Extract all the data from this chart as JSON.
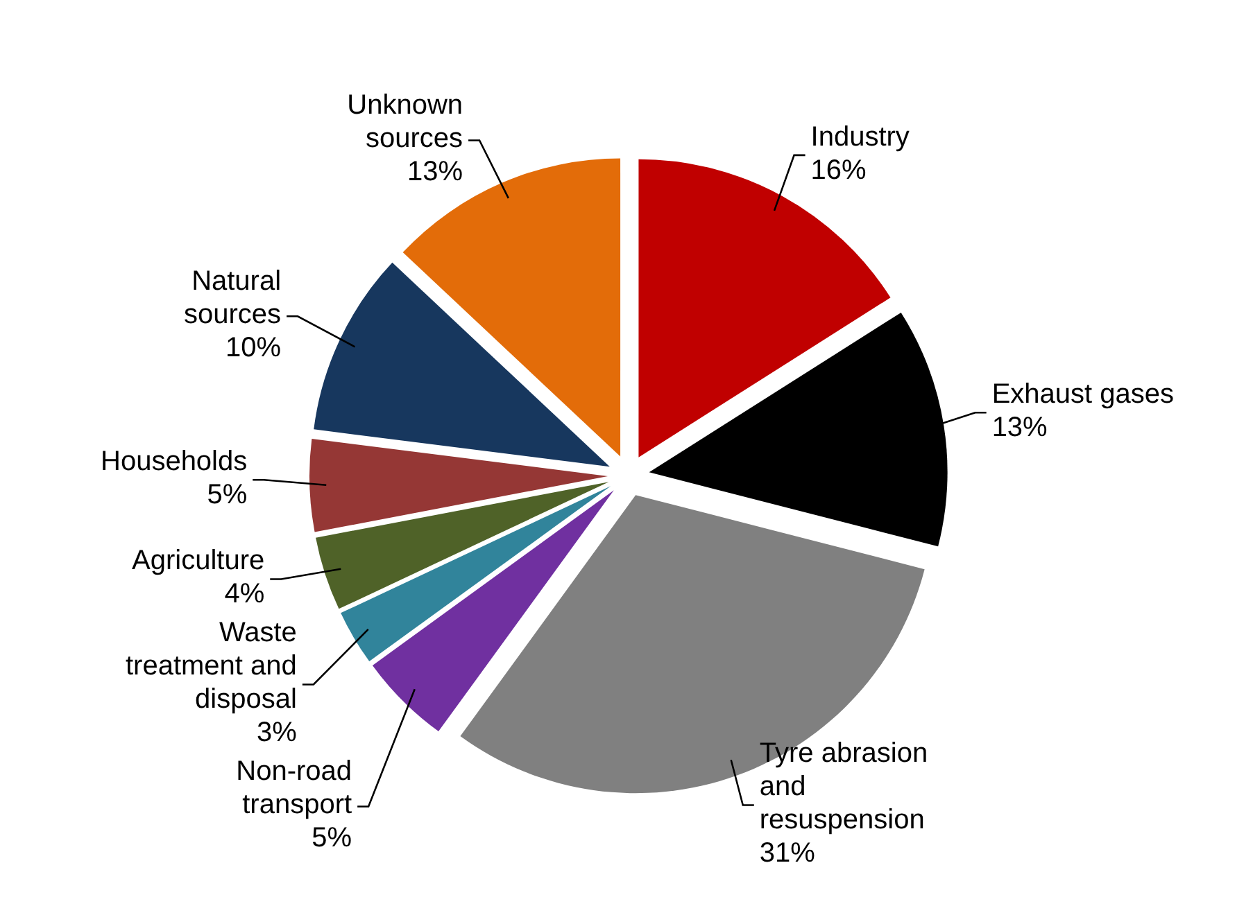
{
  "chart_data": {
    "type": "pie",
    "categories": [
      "Industry",
      "Exhaust gases",
      "Tyre abrasion and resuspension",
      "Non-road transport",
      "Waste treatment and disposal",
      "Agriculture",
      "Households",
      "Natural sources",
      "Unknown sources"
    ],
    "values": [
      16,
      13,
      31,
      5,
      3,
      4,
      5,
      10,
      13
    ],
    "colors": [
      "#c00000",
      "#000000",
      "#808080",
      "#7030a0",
      "#31849b",
      "#4f6228",
      "#953735",
      "#17375e",
      "#e36c09"
    ],
    "value_labels": [
      "16%",
      "13%",
      "31%",
      "5%",
      "3%",
      "4%",
      "5%",
      "10%",
      "13%"
    ],
    "legend": false
  }
}
